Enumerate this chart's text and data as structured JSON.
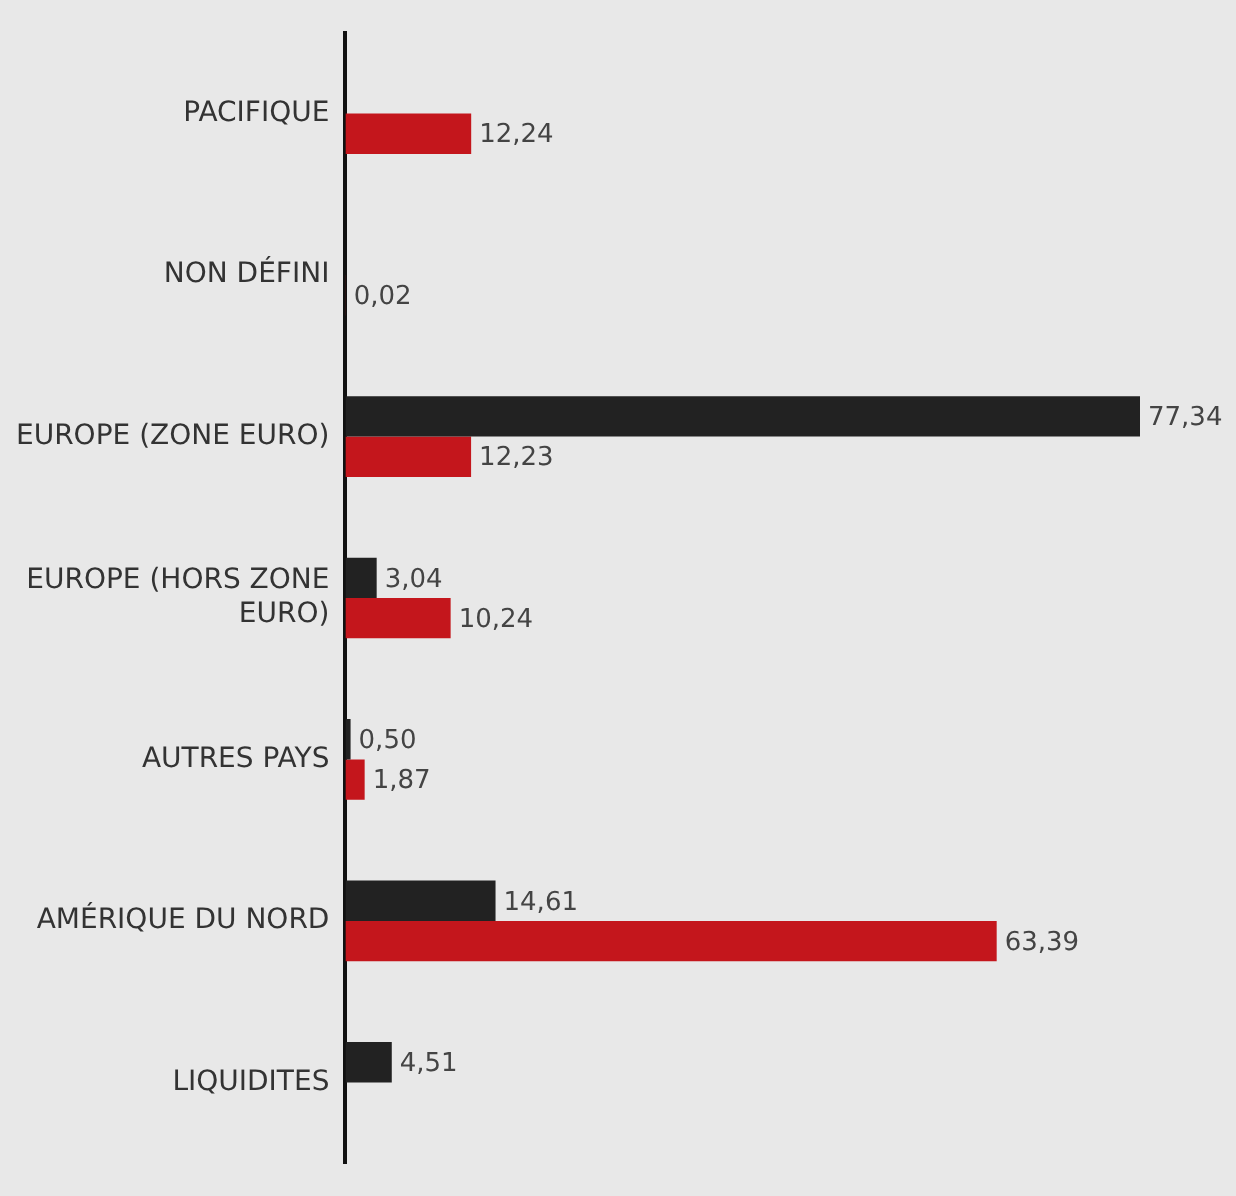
{
  "chart_data": {
    "type": "bar",
    "orientation": "horizontal",
    "grid": false,
    "tick_labels": "y",
    "categories": [
      "PACIFIQUE",
      "NON DÉFINI",
      "EUROPE (ZONE EURO)",
      "EUROPE (HORS ZONE EURO)",
      "AUTRES PAYS",
      "AMÉRIQUE DU NORD",
      "LIQUIDITES"
    ],
    "series": [
      {
        "color": "#222222",
        "values": [
          null,
          null,
          77.34,
          3.04,
          0.5,
          14.61,
          4.51
        ],
        "value_labels": [
          null,
          null,
          "77,34",
          "3,04",
          "0,50",
          "14,61",
          "4,51"
        ]
      },
      {
        "color": "#c4161c",
        "values": [
          12.24,
          0.02,
          12.23,
          10.24,
          1.87,
          63.39,
          null
        ],
        "value_labels": [
          "12,24",
          "0,02",
          "12,23",
          "10,24",
          "1,87",
          "63,39",
          null
        ]
      }
    ]
  }
}
